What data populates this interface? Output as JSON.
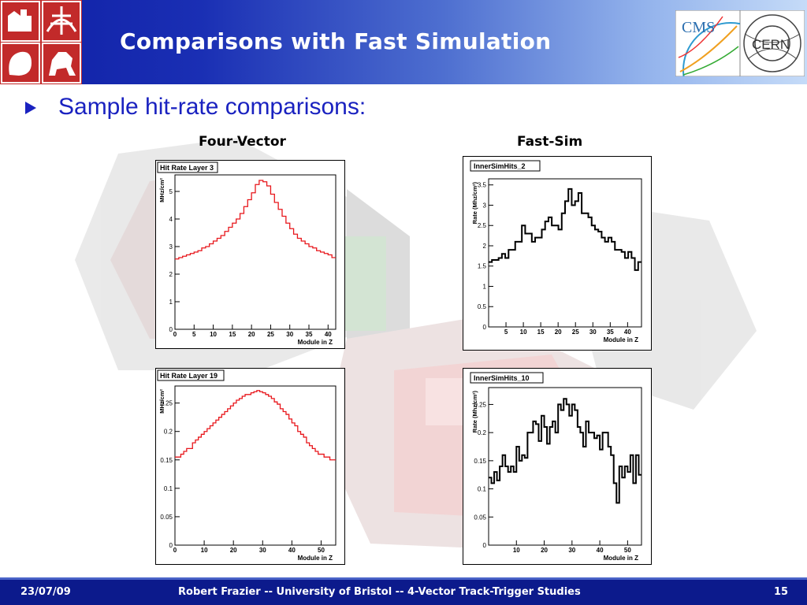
{
  "slide": {
    "title": "Comparisons with Fast Simulation",
    "bullet": "Sample hit-rate comparisons:",
    "col_left": "Four-Vector",
    "col_right": "Fast-Sim"
  },
  "footer": {
    "date": "23/07/09",
    "text": "Robert Frazier   --   University of Bristol   --  4-Vector Track-Trigger Studies",
    "page": "15"
  },
  "logos": {
    "cms": "CMS",
    "cern": "CERN"
  },
  "colors": {
    "header_dark": "#0f1fa5",
    "accent_blue": "#1a22c0",
    "red_hist": "#e8161b",
    "footer": "#0c1a8c"
  },
  "chart_data": [
    {
      "type": "histogram",
      "title": "Hit Rate Layer 3",
      "ylabel": "MHz/cm²",
      "xlabel": "Module in Z",
      "xlim": [
        0,
        42
      ],
      "ylim": [
        0,
        5.6
      ],
      "xticks": [
        "0",
        "5",
        "10",
        "15",
        "20",
        "25",
        "30",
        "35",
        "40"
      ],
      "yticks": [
        "0",
        "1",
        "2",
        "3",
        "4",
        "5"
      ],
      "color": "#e8161b",
      "values": [
        2.55,
        2.6,
        2.65,
        2.7,
        2.75,
        2.8,
        2.85,
        2.95,
        3.0,
        3.1,
        3.2,
        3.3,
        3.4,
        3.55,
        3.7,
        3.85,
        4.0,
        4.2,
        4.45,
        4.7,
        4.95,
        5.25,
        5.4,
        5.35,
        5.2,
        4.9,
        4.6,
        4.35,
        4.1,
        3.85,
        3.65,
        3.45,
        3.3,
        3.2,
        3.1,
        3.0,
        2.95,
        2.85,
        2.8,
        2.75,
        2.7,
        2.6
      ]
    },
    {
      "type": "histogram",
      "title": "InnerSimHits_2",
      "ylabel": "Rate (Mhz/cm²)",
      "xlabel": "Module in Z",
      "xlim": [
        0,
        44
      ],
      "ylim": [
        0,
        3.65
      ],
      "xticks": [
        "5",
        "10",
        "15",
        "20",
        "25",
        "30",
        "35",
        "40"
      ],
      "yticks": [
        "0",
        "0.5",
        "1",
        "1.5",
        "2",
        "2.5",
        "3",
        "3.5"
      ],
      "color": "#000000",
      "values": [
        1.6,
        1.65,
        1.65,
        1.7,
        1.8,
        1.7,
        1.9,
        1.9,
        2.1,
        2.1,
        2.5,
        2.3,
        2.3,
        2.1,
        2.2,
        2.2,
        2.4,
        2.6,
        2.7,
        2.5,
        2.5,
        2.4,
        2.8,
        3.1,
        3.4,
        3.0,
        3.1,
        3.3,
        2.8,
        2.8,
        2.7,
        2.5,
        2.4,
        2.35,
        2.2,
        2.1,
        2.2,
        2.1,
        1.9,
        1.9,
        1.85,
        1.7,
        1.85,
        1.7,
        1.4,
        1.6
      ]
    },
    {
      "type": "histogram",
      "title": "Hit Rate Layer 19",
      "ylabel": "MHz/cm²",
      "xlabel": "Module in Z",
      "xlim": [
        0,
        55
      ],
      "ylim": [
        0,
        0.28
      ],
      "xticks": [
        "0",
        "10",
        "20",
        "30",
        "40",
        "50"
      ],
      "yticks": [
        "0",
        "0.05",
        "0.1",
        "0.15",
        "0.2",
        "0.25"
      ],
      "color": "#e8161b",
      "values": [
        0.155,
        0.155,
        0.16,
        0.165,
        0.17,
        0.17,
        0.18,
        0.185,
        0.19,
        0.195,
        0.2,
        0.205,
        0.21,
        0.215,
        0.22,
        0.225,
        0.23,
        0.235,
        0.24,
        0.245,
        0.25,
        0.255,
        0.258,
        0.262,
        0.265,
        0.265,
        0.268,
        0.27,
        0.272,
        0.27,
        0.268,
        0.265,
        0.262,
        0.258,
        0.252,
        0.248,
        0.24,
        0.235,
        0.23,
        0.222,
        0.215,
        0.21,
        0.2,
        0.195,
        0.19,
        0.18,
        0.175,
        0.17,
        0.165,
        0.16,
        0.16,
        0.155,
        0.155,
        0.15,
        0.15
      ]
    },
    {
      "type": "histogram",
      "title": "InnerSimHits_10",
      "ylabel": "Rate (Mhz/cm²)",
      "xlabel": "Module in Z",
      "xlim": [
        0,
        55
      ],
      "ylim": [
        0,
        0.28
      ],
      "xticks": [
        "10",
        "20",
        "30",
        "40",
        "50"
      ],
      "yticks": [
        "0",
        "0.05",
        "0.1",
        "0.15",
        "0.2",
        "0.25"
      ],
      "color": "#000000",
      "values": [
        0.12,
        0.11,
        0.13,
        0.115,
        0.14,
        0.16,
        0.14,
        0.13,
        0.14,
        0.13,
        0.175,
        0.15,
        0.16,
        0.155,
        0.2,
        0.2,
        0.22,
        0.215,
        0.185,
        0.23,
        0.21,
        0.18,
        0.21,
        0.22,
        0.2,
        0.25,
        0.24,
        0.26,
        0.25,
        0.23,
        0.25,
        0.24,
        0.21,
        0.2,
        0.175,
        0.22,
        0.2,
        0.2,
        0.19,
        0.195,
        0.17,
        0.2,
        0.2,
        0.175,
        0.16,
        0.11,
        0.075,
        0.14,
        0.12,
        0.14,
        0.13,
        0.16,
        0.11,
        0.16,
        0.125
      ]
    }
  ]
}
